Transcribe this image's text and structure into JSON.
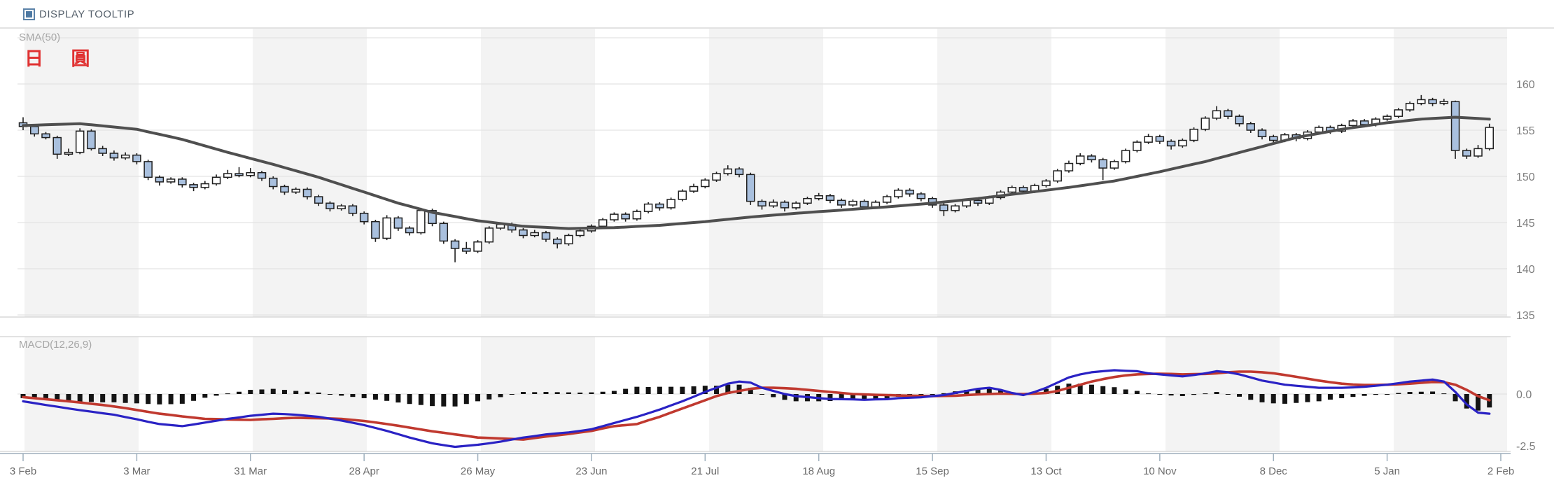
{
  "header": {
    "tooltip_label": "DISPLAY TOOLTIP",
    "checkbox_checked": true
  },
  "labels": {
    "sma": "SMA(50)",
    "instrument": "日 圓",
    "macd": "MACD(12,26,9)"
  },
  "colors": {
    "up_fill": "#ffffff",
    "down_fill": "#a9c0de",
    "candle_stroke": "#1f1f1f",
    "sma_line": "#4f4f4f",
    "macd_line": "#2a22c4",
    "signal_line": "#c0392f",
    "hist_bar": "#141414",
    "band_gray": "#f3f3f3",
    "band_white": "#ffffff",
    "gridline": "#e3e3e3",
    "panel_border": "#d0d0d0",
    "axis_line": "#b6c2cc",
    "tick": "#9fb0be",
    "checkbox_blue": "#4d79a3",
    "instrument_red": "#e03232"
  },
  "chart_data": {
    "type": "candlestick",
    "title": "日 圓",
    "overlay": "SMA(50)",
    "indicator": "MACD(12,26,9)",
    "price_axis_ticks": [
      160,
      155,
      150,
      145,
      140,
      135
    ],
    "price_gridlines": [
      165,
      160,
      155,
      150,
      145,
      140,
      135
    ],
    "macd_axis_ticks": [
      "0.0",
      "-2.5"
    ],
    "macd_axis_values": [
      0,
      -2.5
    ],
    "x_labels": [
      "3 Feb",
      "3 Mar",
      "31 Mar",
      "28 Apr",
      "26 May",
      "23 Jun",
      "21 Jul",
      "18 Aug",
      "15 Sep",
      "13 Oct",
      "10 Nov",
      "8 Dec",
      "5 Jan",
      "2 Feb"
    ],
    "bars_per_tick": 10,
    "candles": [
      [
        155.8,
        156.4,
        155.0,
        155.4
      ],
      [
        155.4,
        155.6,
        154.3,
        154.6
      ],
      [
        154.6,
        154.8,
        154.0,
        154.2
      ],
      [
        154.2,
        154.4,
        151.9,
        152.4
      ],
      [
        152.4,
        153.0,
        152.2,
        152.6
      ],
      [
        152.6,
        155.2,
        152.4,
        154.9
      ],
      [
        154.9,
        155.1,
        152.8,
        153.0
      ],
      [
        153.0,
        153.3,
        152.2,
        152.5
      ],
      [
        152.5,
        152.8,
        151.7,
        152.0
      ],
      [
        152.0,
        152.6,
        151.8,
        152.3
      ],
      [
        152.3,
        152.5,
        151.3,
        151.6
      ],
      [
        151.6,
        151.8,
        149.6,
        149.9
      ],
      [
        149.9,
        150.1,
        149.0,
        149.4
      ],
      [
        149.4,
        149.9,
        149.2,
        149.7
      ],
      [
        149.7,
        149.9,
        148.8,
        149.1
      ],
      [
        149.1,
        149.3,
        148.4,
        148.8
      ],
      [
        148.8,
        149.5,
        148.6,
        149.2
      ],
      [
        149.2,
        150.2,
        149.0,
        149.9
      ],
      [
        149.9,
        150.7,
        149.7,
        150.3
      ],
      [
        150.3,
        151.0,
        149.9,
        150.1
      ],
      [
        150.1,
        150.9,
        149.9,
        150.4
      ],
      [
        150.4,
        150.6,
        149.5,
        149.8
      ],
      [
        149.8,
        150.0,
        148.6,
        148.9
      ],
      [
        148.9,
        149.1,
        148.0,
        148.3
      ],
      [
        148.3,
        148.8,
        148.1,
        148.6
      ],
      [
        148.6,
        148.8,
        147.5,
        147.8
      ],
      [
        147.8,
        148.0,
        146.8,
        147.1
      ],
      [
        147.1,
        147.3,
        146.2,
        146.5
      ],
      [
        146.5,
        147.0,
        146.3,
        146.8
      ],
      [
        146.8,
        147.0,
        145.7,
        146.0
      ],
      [
        146.0,
        146.2,
        144.8,
        145.1
      ],
      [
        145.1,
        145.3,
        142.9,
        143.3
      ],
      [
        143.3,
        145.8,
        143.1,
        145.5
      ],
      [
        145.5,
        145.7,
        144.1,
        144.4
      ],
      [
        144.4,
        144.6,
        143.6,
        143.9
      ],
      [
        143.9,
        146.6,
        143.7,
        146.3
      ],
      [
        146.3,
        146.5,
        144.6,
        144.9
      ],
      [
        144.9,
        145.1,
        142.7,
        143.0
      ],
      [
        143.0,
        143.2,
        140.7,
        142.2
      ],
      [
        142.2,
        142.9,
        141.6,
        141.9
      ],
      [
        141.9,
        143.1,
        141.7,
        142.9
      ],
      [
        142.9,
        144.6,
        142.7,
        144.4
      ],
      [
        144.4,
        145.0,
        144.2,
        144.8
      ],
      [
        144.8,
        145.0,
        143.9,
        144.2
      ],
      [
        144.2,
        144.4,
        143.3,
        143.6
      ],
      [
        143.6,
        144.2,
        143.4,
        143.9
      ],
      [
        143.9,
        144.1,
        142.9,
        143.2
      ],
      [
        143.2,
        143.4,
        142.2,
        142.7
      ],
      [
        142.7,
        143.8,
        142.5,
        143.6
      ],
      [
        143.6,
        144.3,
        143.4,
        144.1
      ],
      [
        144.1,
        144.8,
        143.9,
        144.6
      ],
      [
        144.6,
        145.5,
        144.4,
        145.3
      ],
      [
        145.3,
        146.1,
        145.1,
        145.9
      ],
      [
        145.9,
        146.1,
        145.1,
        145.4
      ],
      [
        145.4,
        146.4,
        145.2,
        146.2
      ],
      [
        146.2,
        147.2,
        146.0,
        147.0
      ],
      [
        147.0,
        147.2,
        146.3,
        146.6
      ],
      [
        146.6,
        147.7,
        146.4,
        147.5
      ],
      [
        147.5,
        148.6,
        147.3,
        148.4
      ],
      [
        148.4,
        149.2,
        148.2,
        148.9
      ],
      [
        148.9,
        149.8,
        148.7,
        149.6
      ],
      [
        149.6,
        150.5,
        149.4,
        150.3
      ],
      [
        150.3,
        151.2,
        150.1,
        150.8
      ],
      [
        150.8,
        151.0,
        149.9,
        150.2
      ],
      [
        150.2,
        150.4,
        146.9,
        147.3
      ],
      [
        147.3,
        147.5,
        146.4,
        146.8
      ],
      [
        146.8,
        147.5,
        146.6,
        147.2
      ],
      [
        147.2,
        147.4,
        146.2,
        146.6
      ],
      [
        146.6,
        147.3,
        146.4,
        147.1
      ],
      [
        147.1,
        147.8,
        146.9,
        147.6
      ],
      [
        147.6,
        148.2,
        147.4,
        147.9
      ],
      [
        147.9,
        148.1,
        147.1,
        147.4
      ],
      [
        147.4,
        147.6,
        146.6,
        146.9
      ],
      [
        146.9,
        147.5,
        146.7,
        147.3
      ],
      [
        147.3,
        147.5,
        146.4,
        146.7
      ],
      [
        146.7,
        147.4,
        146.5,
        147.2
      ],
      [
        147.2,
        148.0,
        147.0,
        147.8
      ],
      [
        147.8,
        148.7,
        147.6,
        148.5
      ],
      [
        148.5,
        148.7,
        147.8,
        148.1
      ],
      [
        148.1,
        148.3,
        147.3,
        147.6
      ],
      [
        147.6,
        147.8,
        146.6,
        146.9
      ],
      [
        146.9,
        147.1,
        145.7,
        146.3
      ],
      [
        146.3,
        147.0,
        146.1,
        146.8
      ],
      [
        146.8,
        147.6,
        146.6,
        147.4
      ],
      [
        147.4,
        147.6,
        146.8,
        147.1
      ],
      [
        147.1,
        147.9,
        146.9,
        147.7
      ],
      [
        147.7,
        148.5,
        147.5,
        148.3
      ],
      [
        148.3,
        149.0,
        148.1,
        148.8
      ],
      [
        148.8,
        149.0,
        148.1,
        148.4
      ],
      [
        148.4,
        149.2,
        148.2,
        149.0
      ],
      [
        149.0,
        149.7,
        148.8,
        149.5
      ],
      [
        149.5,
        150.8,
        149.3,
        150.6
      ],
      [
        150.6,
        151.7,
        150.4,
        151.4
      ],
      [
        151.4,
        152.5,
        151.2,
        152.2
      ],
      [
        152.2,
        152.4,
        151.5,
        151.8
      ],
      [
        151.8,
        152.0,
        149.6,
        150.9
      ],
      [
        150.9,
        151.8,
        150.7,
        151.6
      ],
      [
        151.6,
        153.0,
        151.4,
        152.8
      ],
      [
        152.8,
        153.9,
        152.6,
        153.7
      ],
      [
        153.7,
        154.6,
        153.5,
        154.3
      ],
      [
        154.3,
        154.5,
        153.5,
        153.8
      ],
      [
        153.8,
        154.0,
        152.9,
        153.3
      ],
      [
        153.3,
        154.1,
        153.1,
        153.9
      ],
      [
        153.9,
        155.3,
        153.7,
        155.1
      ],
      [
        155.1,
        156.5,
        154.9,
        156.3
      ],
      [
        156.3,
        157.6,
        156.1,
        157.1
      ],
      [
        157.1,
        157.3,
        156.2,
        156.5
      ],
      [
        156.5,
        156.7,
        155.4,
        155.7
      ],
      [
        155.7,
        155.9,
        154.7,
        155.0
      ],
      [
        155.0,
        155.2,
        154.0,
        154.3
      ],
      [
        154.3,
        154.5,
        153.5,
        153.9
      ],
      [
        153.9,
        154.7,
        153.7,
        154.5
      ],
      [
        154.5,
        154.7,
        153.8,
        154.1
      ],
      [
        154.1,
        155.0,
        153.9,
        154.8
      ],
      [
        154.8,
        155.5,
        154.6,
        155.3
      ],
      [
        155.3,
        155.5,
        154.6,
        154.9
      ],
      [
        154.9,
        155.7,
        154.7,
        155.5
      ],
      [
        155.5,
        156.2,
        155.3,
        156.0
      ],
      [
        156.0,
        156.2,
        155.3,
        155.6
      ],
      [
        155.6,
        156.4,
        155.4,
        156.2
      ],
      [
        156.2,
        156.7,
        156.0,
        156.5
      ],
      [
        156.5,
        157.4,
        156.3,
        157.2
      ],
      [
        157.2,
        158.1,
        157.0,
        157.9
      ],
      [
        157.9,
        158.8,
        157.7,
        158.3
      ],
      [
        158.3,
        158.5,
        157.6,
        157.9
      ],
      [
        157.9,
        158.4,
        157.7,
        158.1
      ],
      [
        158.1,
        158.2,
        151.9,
        152.8
      ],
      [
        152.8,
        153.0,
        151.9,
        152.2
      ],
      [
        152.2,
        153.4,
        152.0,
        153.0
      ],
      [
        153.0,
        155.7,
        152.8,
        155.3
      ]
    ],
    "sma50": [
      155.5,
      155.54,
      155.58,
      155.62,
      155.66,
      155.7,
      155.58,
      155.46,
      155.34,
      155.22,
      155.1,
      154.82,
      154.55,
      154.28,
      154.0,
      153.65,
      153.3,
      152.95,
      152.6,
      152.28,
      151.95,
      151.62,
      151.3,
      150.95,
      150.6,
      150.25,
      149.9,
      149.5,
      149.1,
      148.7,
      148.3,
      147.9,
      147.5,
      147.1,
      146.77,
      146.43,
      146.1,
      145.88,
      145.65,
      145.42,
      145.2,
      145.05,
      144.9,
      144.75,
      144.6,
      144.54,
      144.48,
      144.41,
      144.35,
      144.38,
      144.4,
      144.43,
      144.45,
      144.51,
      144.58,
      144.64,
      144.7,
      144.8,
      144.9,
      145.0,
      145.1,
      145.23,
      145.35,
      145.48,
      145.6,
      145.7,
      145.8,
      145.9,
      146.0,
      146.09,
      146.18,
      146.26,
      146.35,
      146.44,
      146.53,
      146.61,
      146.7,
      146.8,
      146.9,
      147.0,
      147.1,
      147.23,
      147.35,
      147.48,
      147.6,
      147.75,
      147.9,
      148.05,
      148.2,
      148.35,
      148.5,
      148.65,
      148.8,
      148.98,
      149.15,
      149.33,
      149.5,
      149.75,
      150.0,
      150.25,
      150.5,
      150.78,
      151.05,
      151.33,
      151.6,
      151.93,
      152.25,
      152.58,
      152.9,
      153.23,
      153.55,
      153.88,
      154.2,
      154.43,
      154.65,
      154.88,
      155.1,
      155.28,
      155.45,
      155.63,
      155.8,
      155.93,
      156.07,
      156.2,
      156.27,
      156.33,
      156.4,
      156.33,
      156.27,
      156.2
    ],
    "macd": {
      "macd": [
        -0.35,
        -0.44,
        -0.53,
        -0.61,
        -0.7,
        -0.78,
        -0.85,
        -0.93,
        -1.0,
        -1.11,
        -1.22,
        -1.34,
        -1.45,
        -1.5,
        -1.55,
        -1.47,
        -1.38,
        -1.29,
        -1.2,
        -1.13,
        -1.05,
        -1.0,
        -0.95,
        -0.97,
        -1.0,
        -1.05,
        -1.1,
        -1.19,
        -1.28,
        -1.39,
        -1.5,
        -1.64,
        -1.78,
        -1.94,
        -2.1,
        -2.24,
        -2.38,
        -2.47,
        -2.55,
        -2.5,
        -2.45,
        -2.38,
        -2.3,
        -2.2,
        -2.1,
        -2.03,
        -1.95,
        -1.9,
        -1.85,
        -1.78,
        -1.7,
        -1.55,
        -1.4,
        -1.25,
        -1.1,
        -0.93,
        -0.75,
        -0.55,
        -0.35,
        -0.13,
        0.1,
        0.3,
        0.5,
        0.6,
        0.55,
        0.3,
        0.15,
        0.0,
        -0.1,
        -0.15,
        -0.2,
        -0.24,
        -0.25,
        -0.26,
        -0.28,
        -0.26,
        -0.25,
        -0.2,
        -0.18,
        -0.16,
        -0.1,
        -0.05,
        0.05,
        0.15,
        0.25,
        0.3,
        0.2,
        0.05,
        -0.05,
        0.1,
        0.3,
        0.55,
        0.8,
        0.95,
        1.05,
        1.1,
        1.15,
        1.12,
        1.1,
        1.0,
        0.95,
        0.9,
        0.85,
        0.92,
        1.0,
        1.1,
        1.05,
        0.95,
        0.8,
        0.65,
        0.55,
        0.45,
        0.4,
        0.35,
        0.3,
        0.3,
        0.3,
        0.32,
        0.35,
        0.4,
        0.45,
        0.52,
        0.6,
        0.65,
        0.7,
        0.6,
        0.1,
        -0.5,
        -0.9,
        -0.95
      ],
      "signal": [
        -0.15,
        -0.2,
        -0.25,
        -0.3,
        -0.35,
        -0.41,
        -0.47,
        -0.53,
        -0.6,
        -0.68,
        -0.77,
        -0.86,
        -0.95,
        -1.01,
        -1.08,
        -1.14,
        -1.2,
        -1.21,
        -1.23,
        -1.24,
        -1.25,
        -1.22,
        -1.2,
        -1.17,
        -1.15,
        -1.16,
        -1.17,
        -1.18,
        -1.2,
        -1.25,
        -1.3,
        -1.37,
        -1.45,
        -1.53,
        -1.62,
        -1.71,
        -1.8,
        -1.87,
        -1.95,
        -2.02,
        -2.1,
        -2.12,
        -2.15,
        -2.17,
        -2.2,
        -2.12,
        -2.05,
        -1.99,
        -1.93,
        -1.85,
        -1.78,
        -1.66,
        -1.55,
        -1.5,
        -1.45,
        -1.27,
        -1.1,
        -0.9,
        -0.7,
        -0.5,
        -0.3,
        -0.1,
        0.05,
        0.15,
        0.25,
        0.3,
        0.3,
        0.28,
        0.25,
        0.2,
        0.15,
        0.1,
        0.05,
        0.0,
        -0.02,
        -0.04,
        -0.05,
        -0.07,
        -0.08,
        -0.09,
        -0.1,
        -0.09,
        -0.08,
        -0.05,
        -0.02,
        0.0,
        0.02,
        0.01,
        0.0,
        0.02,
        0.05,
        0.15,
        0.3,
        0.45,
        0.6,
        0.72,
        0.82,
        0.9,
        0.95,
        0.97,
        0.98,
        0.97,
        0.95,
        0.96,
        0.97,
        1.0,
        1.05,
        1.08,
        1.08,
        1.05,
        1.0,
        0.92,
        0.83,
        0.74,
        0.65,
        0.57,
        0.5,
        0.46,
        0.44,
        0.44,
        0.45,
        0.47,
        0.5,
        0.54,
        0.58,
        0.57,
        0.45,
        0.2,
        -0.1,
        -0.3
      ]
    },
    "price_range_note": "right axis 135-160, MACD axis 0.0 / -2.5"
  }
}
